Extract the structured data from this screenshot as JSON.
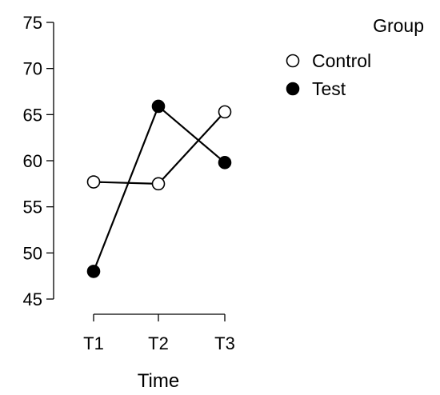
{
  "chart_data": {
    "type": "line",
    "xlabel": "Time",
    "ylabel": "",
    "categories": [
      "T1",
      "T2",
      "T3"
    ],
    "ylim": [
      45,
      75
    ],
    "yticks": [
      45,
      50,
      55,
      60,
      65,
      70,
      75
    ],
    "grid": false,
    "legend": {
      "title": "Group",
      "placement": "top-right"
    },
    "series": [
      {
        "name": "Control",
        "values": [
          57.7,
          57.5,
          65.3
        ],
        "marker": "open-circle",
        "color": "#000000"
      },
      {
        "name": "Test",
        "values": [
          48.0,
          65.9,
          59.8
        ],
        "marker": "filled-circle",
        "color": "#000000"
      }
    ]
  }
}
